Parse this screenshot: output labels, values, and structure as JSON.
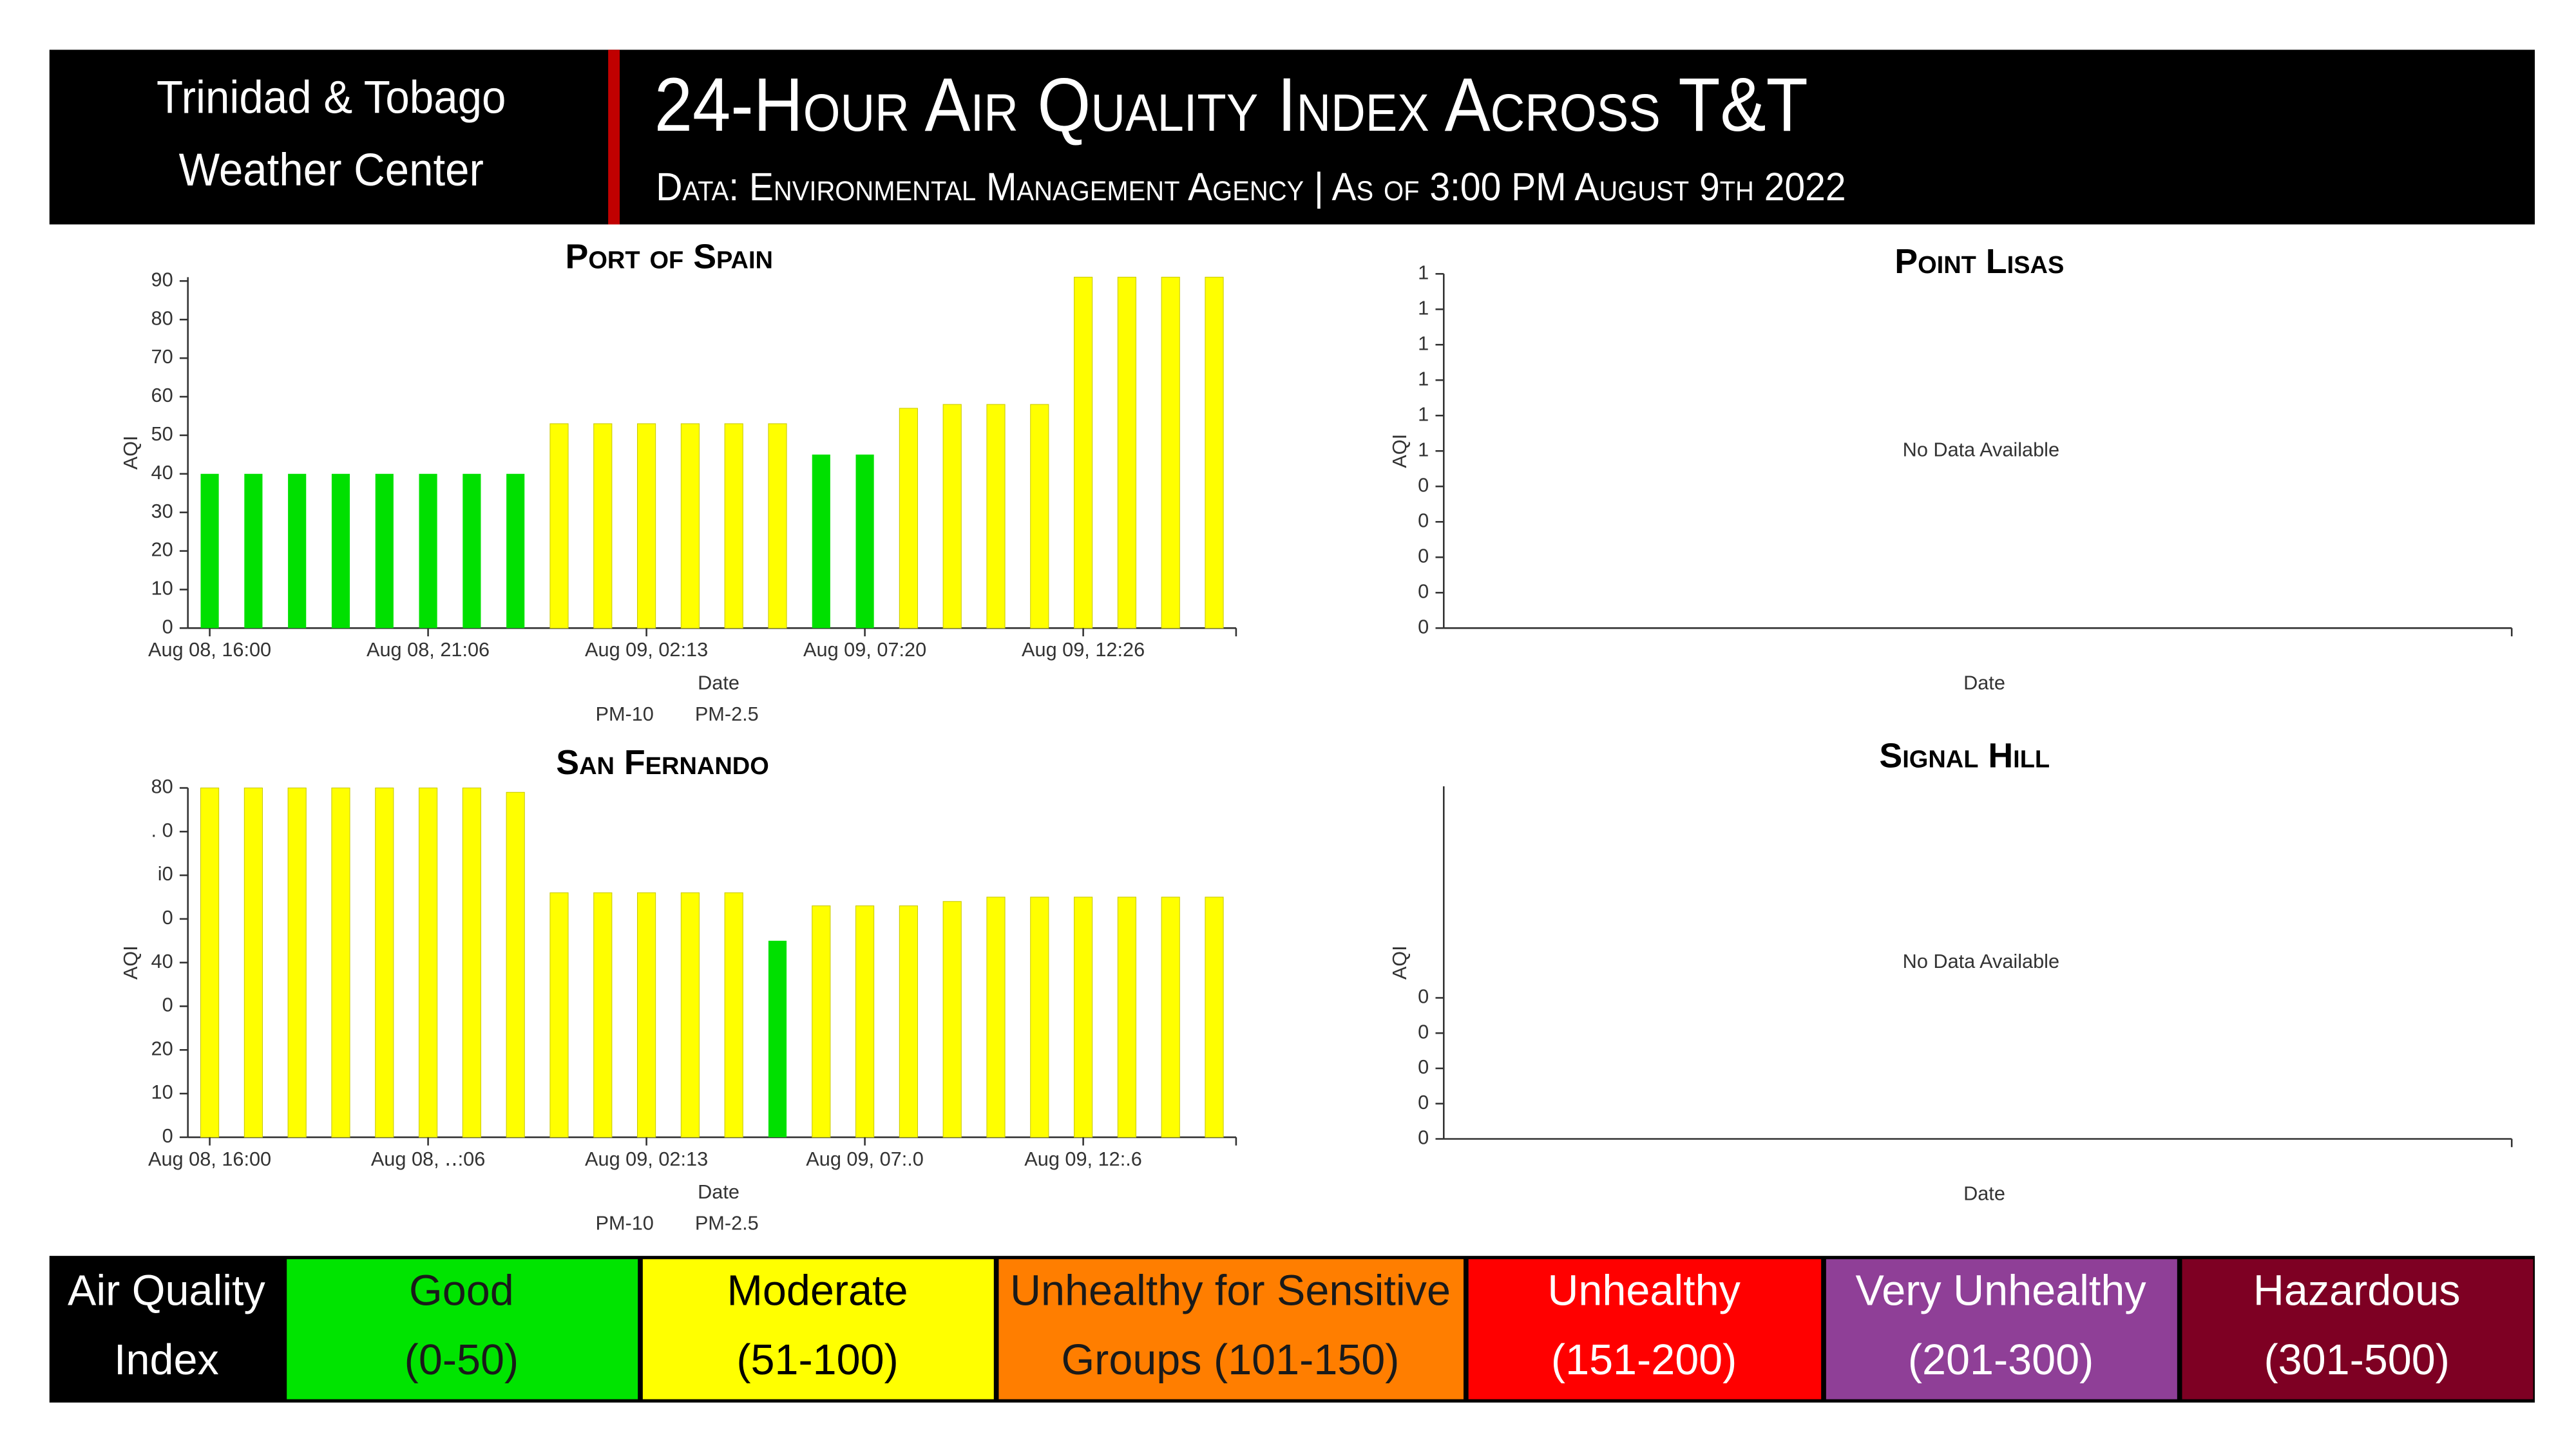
{
  "header": {
    "org_lines": [
      "Trinidad & Tobago",
      "Weather Center"
    ],
    "title": "24-Hour Air Quality Index Across T&T",
    "subtitle": "Data: Environmental Management Agency | As of 3:00 PM August 9th 2022"
  },
  "chart_data": [
    {
      "type": "bar",
      "title": "Port of Spain",
      "x_label": "Date",
      "y_label": "AQI",
      "categories": [
        "Aug 08, 16:00",
        null,
        null,
        null,
        null,
        "Aug 08, 21:06",
        null,
        null,
        null,
        null,
        "Aug 09, 02:13",
        null,
        null,
        null,
        null,
        "Aug 09, 07:20",
        null,
        null,
        null,
        null,
        "Aug 09, 12:26",
        null,
        null,
        null
      ],
      "values": [
        40,
        40,
        40,
        40,
        40,
        40,
        40,
        40,
        53,
        53,
        53,
        53,
        53,
        53,
        45,
        45,
        57,
        58,
        58,
        58,
        91,
        91,
        91,
        91
      ],
      "colors": [
        "#00e000",
        "#00e000",
        "#00e000",
        "#00e000",
        "#00e000",
        "#00e000",
        "#00e000",
        "#00e000",
        "#ffff00",
        "#ffff00",
        "#ffff00",
        "#ffff00",
        "#ffff00",
        "#ffff00",
        "#00e000",
        "#00e000",
        "#ffff00",
        "#ffff00",
        "#ffff00",
        "#ffff00",
        "#ffff00",
        "#ffff00",
        "#ffff00",
        "#ffff00"
      ],
      "legend": [
        "PM-10",
        "PM-2.5"
      ],
      "ylim": [
        0,
        91
      ],
      "yticks": [
        0,
        10,
        20,
        30,
        40,
        50,
        60,
        70,
        80,
        90
      ]
    },
    {
      "type": "bar",
      "title": "Point Lisas",
      "x_label": "Date",
      "y_label": "AQI",
      "annotation": "No Data Available",
      "categories": [],
      "values": [],
      "ylim": [
        0,
        1
      ],
      "yticks": [
        0,
        {
          "value": 0.1,
          "label": "0"
        },
        {
          "value": 0.2,
          "label": "0"
        },
        {
          "value": 0.3,
          "label": "0"
        },
        {
          "value": 0.4,
          "label": "0"
        },
        {
          "value": 0.5,
          "label": "1"
        },
        {
          "value": 0.6,
          "label": "1"
        },
        {
          "value": 0.7,
          "label": "1"
        },
        {
          "value": 0.8,
          "label": "1"
        },
        {
          "value": 0.9,
          "label": "1"
        },
        1
      ]
    },
    {
      "type": "bar",
      "title": "San Fernando",
      "x_label": "Date",
      "y_label": "AQI",
      "categories": [
        "Aug 08, 16:00",
        null,
        null,
        null,
        null,
        "Aug 08, ‥:06",
        null,
        null,
        null,
        null,
        "Aug 09, 02:13",
        null,
        null,
        null,
        null,
        "Aug 09, 07:.0",
        null,
        null,
        null,
        null,
        "Aug 09, 12:.6",
        null,
        null,
        null
      ],
      "values": [
        80,
        80,
        80,
        80,
        80,
        80,
        80,
        79,
        56,
        56,
        56,
        56,
        56,
        45,
        53,
        53,
        53,
        54,
        55,
        55,
        55,
        55,
        55,
        55
      ],
      "colors": [
        "#ffff00",
        "#ffff00",
        "#ffff00",
        "#ffff00",
        "#ffff00",
        "#ffff00",
        "#ffff00",
        "#ffff00",
        "#ffff00",
        "#ffff00",
        "#ffff00",
        "#ffff00",
        "#ffff00",
        "#00e000",
        "#ffff00",
        "#ffff00",
        "#ffff00",
        "#ffff00",
        "#ffff00",
        "#ffff00",
        "#ffff00",
        "#ffff00",
        "#ffff00",
        "#ffff00"
      ],
      "legend": [
        "PM-10",
        "PM-2.5"
      ],
      "ylim": [
        0,
        80
      ],
      "yticks": [
        0,
        10,
        20,
        {
          "value": 30,
          "label": "0"
        },
        40,
        {
          "value": 50,
          "label": "0"
        },
        {
          "value": 60,
          "label": "i0"
        },
        {
          "value": 70,
          "label": ". 0"
        },
        80
      ]
    },
    {
      "type": "bar",
      "title": "Signal Hill",
      "x_label": "Date",
      "y_label": "AQI",
      "annotation": "No Data Available",
      "categories": [],
      "values": [],
      "ylim": [
        0,
        1
      ],
      "yticks": [
        0,
        {
          "value": 0.1,
          "label": "0"
        },
        {
          "value": 0.2,
          "label": "0"
        },
        {
          "value": 0.3,
          "label": "0"
        },
        {
          "value": 0.4,
          "label": "0"
        }
      ]
    }
  ],
  "legend": {
    "title_lines": [
      "Air Quality",
      "Index"
    ],
    "items": [
      {
        "lines": [
          "Good",
          "(0-50)"
        ],
        "color": "#00e400",
        "text_color": "#1a1a1a"
      },
      {
        "lines": [
          "Moderate",
          "(51-100)"
        ],
        "color": "#ffff00",
        "text_color": "#000000"
      },
      {
        "lines": [
          "Unhealthy for Sensitive",
          "Groups (101-150)"
        ],
        "color": "#ff7e00",
        "text_color": "#1a1a1a"
      },
      {
        "lines": [
          "Unhealthy",
          "(151-200)"
        ],
        "color": "#ff0000",
        "text_color": "#ffffff"
      },
      {
        "lines": [
          "Very Unhealthy",
          "(201-300)"
        ],
        "color": "#8f3f97",
        "text_color": "#ffffff"
      },
      {
        "lines": [
          "Hazardous",
          "(301-500)"
        ],
        "color": "#7e0023",
        "text_color": "#ffffff"
      }
    ]
  }
}
